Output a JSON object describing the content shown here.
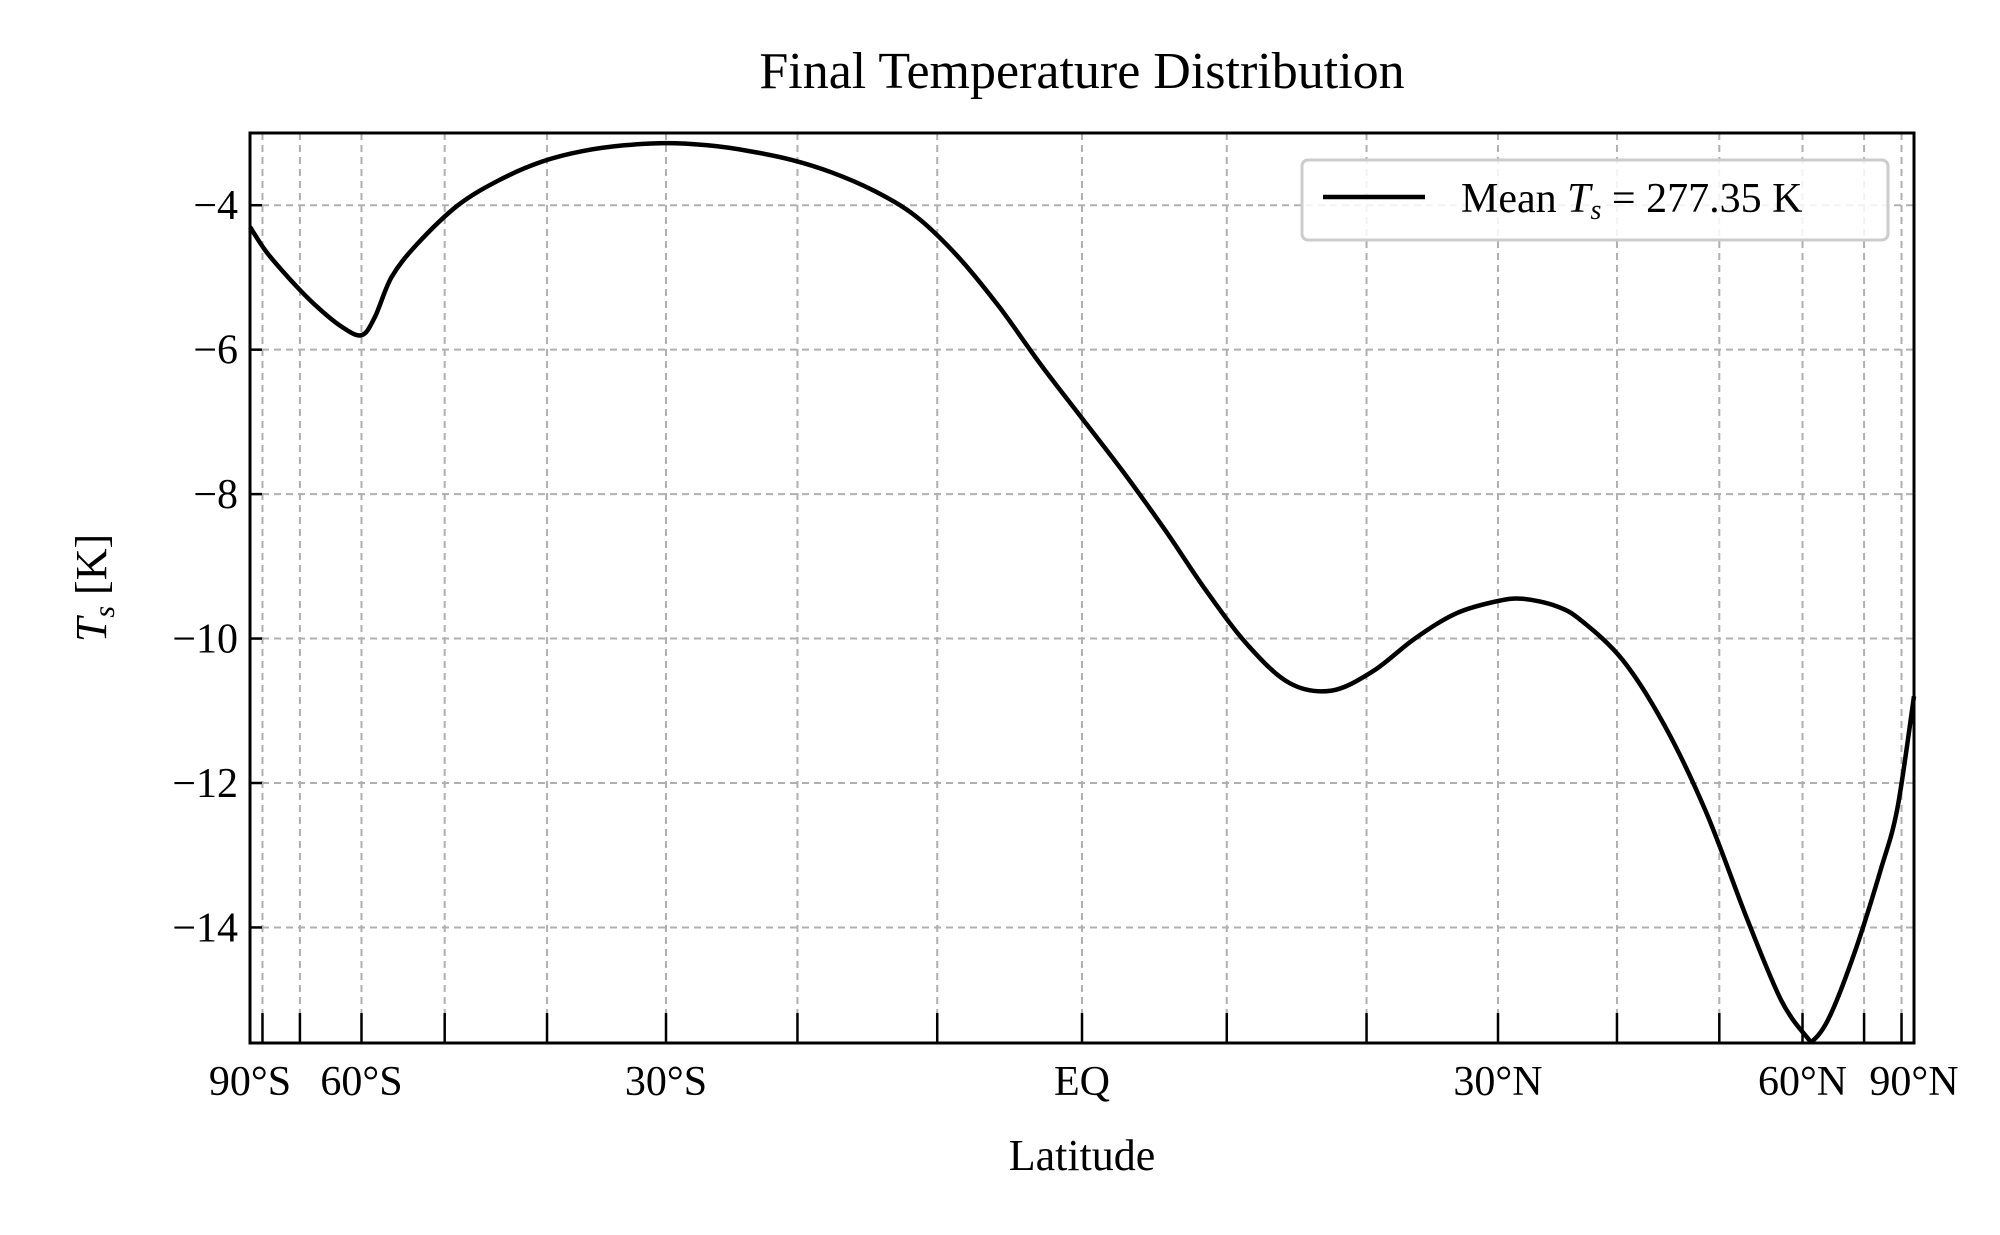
{
  "chart_data": {
    "type": "line",
    "title": "Final Temperature Distribution",
    "xlabel": "Latitude",
    "ylabel_main": "T",
    "ylabel_sub": "s",
    "ylabel_unit": " [K]",
    "xlim": [
      -1,
      1
    ],
    "ylim": [
      -15.6,
      -3.0
    ],
    "y_ticks": [
      -4,
      -6,
      -8,
      -10,
      -12,
      -14
    ],
    "y_tick_labels": [
      "−4",
      "−6",
      "−8",
      "−10",
      "−12",
      "−14"
    ],
    "x_tick_positions": [
      -0.985,
      -0.94,
      -0.866,
      -0.766,
      -0.643,
      -0.5,
      -0.342,
      -0.174,
      0.0,
      0.174,
      0.342,
      0.5,
      0.643,
      0.766,
      0.866,
      0.94,
      0.985
    ],
    "x_labeled_ticks": [
      {
        "x": -1.0,
        "label": "90°S"
      },
      {
        "x": -0.866,
        "label": "60°S"
      },
      {
        "x": -0.5,
        "label": "30°S"
      },
      {
        "x": 0.0,
        "label": "EQ"
      },
      {
        "x": 0.5,
        "label": "30°N"
      },
      {
        "x": 0.866,
        "label": "60°N"
      },
      {
        "x": 1.0,
        "label": "90°N"
      }
    ],
    "grid": true,
    "legend": {
      "placement": "top-right",
      "text_prefix": "Mean ",
      "text_var": "T",
      "text_sub": "s",
      "text_suffix": " = 277.35 K"
    },
    "series": [
      {
        "name": "Mean Ts = 277.35 K",
        "color": "#000000",
        "points": [
          [
            -1.0,
            -4.3
          ],
          [
            -0.98,
            -4.65
          ],
          [
            -0.95,
            -5.05
          ],
          [
            -0.92,
            -5.4
          ],
          [
            -0.89,
            -5.68
          ],
          [
            -0.866,
            -5.8
          ],
          [
            -0.85,
            -5.55
          ],
          [
            -0.83,
            -5.0
          ],
          [
            -0.8,
            -4.55
          ],
          [
            -0.75,
            -4.0
          ],
          [
            -0.7,
            -3.65
          ],
          [
            -0.65,
            -3.4
          ],
          [
            -0.6,
            -3.25
          ],
          [
            -0.55,
            -3.17
          ],
          [
            -0.5,
            -3.14
          ],
          [
            -0.45,
            -3.17
          ],
          [
            -0.4,
            -3.25
          ],
          [
            -0.35,
            -3.37
          ],
          [
            -0.3,
            -3.55
          ],
          [
            -0.25,
            -3.8
          ],
          [
            -0.2,
            -4.15
          ],
          [
            -0.15,
            -4.7
          ],
          [
            -0.1,
            -5.4
          ],
          [
            -0.05,
            -6.2
          ],
          [
            0.0,
            -6.95
          ],
          [
            0.05,
            -7.7
          ],
          [
            0.1,
            -8.5
          ],
          [
            0.15,
            -9.35
          ],
          [
            0.2,
            -10.1
          ],
          [
            0.25,
            -10.62
          ],
          [
            0.3,
            -10.72
          ],
          [
            0.35,
            -10.45
          ],
          [
            0.4,
            -10.0
          ],
          [
            0.45,
            -9.65
          ],
          [
            0.5,
            -9.48
          ],
          [
            0.53,
            -9.45
          ],
          [
            0.57,
            -9.55
          ],
          [
            0.6,
            -9.75
          ],
          [
            0.65,
            -10.3
          ],
          [
            0.7,
            -11.2
          ],
          [
            0.75,
            -12.4
          ],
          [
            0.8,
            -13.9
          ],
          [
            0.84,
            -15.0
          ],
          [
            0.87,
            -15.5
          ],
          [
            0.88,
            -15.55
          ],
          [
            0.9,
            -15.2
          ],
          [
            0.93,
            -14.3
          ],
          [
            0.96,
            -13.2
          ],
          [
            0.98,
            -12.35
          ],
          [
            1.0,
            -10.8
          ]
        ]
      }
    ]
  }
}
